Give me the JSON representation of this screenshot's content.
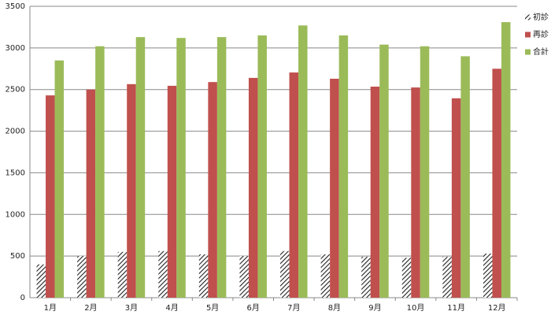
{
  "chart_data": {
    "type": "bar",
    "categories": [
      "1月",
      "2月",
      "3月",
      "4月",
      "5月",
      "6月",
      "7月",
      "8月",
      "9月",
      "10月",
      "11月",
      "12月"
    ],
    "series": [
      {
        "name": "初診",
        "color": "#222222",
        "hatch": true,
        "values": [
          400,
          500,
          550,
          560,
          520,
          500,
          560,
          520,
          490,
          480,
          490,
          530
        ]
      },
      {
        "name": "再診",
        "color": "#c0504d",
        "values": [
          2430,
          2500,
          2565,
          2545,
          2590,
          2640,
          2705,
          2630,
          2535,
          2525,
          2395,
          2750
        ]
      },
      {
        "name": "合計",
        "color": "#9bbb59",
        "values": [
          2850,
          3020,
          3130,
          3120,
          3130,
          3150,
          3270,
          3150,
          3040,
          3020,
          2900,
          3310
        ]
      }
    ],
    "ylim": [
      0,
      3500
    ],
    "yticks": [
      0,
      500,
      1000,
      1500,
      2000,
      2500,
      3000,
      3500
    ],
    "grid": true,
    "legend": "right"
  }
}
